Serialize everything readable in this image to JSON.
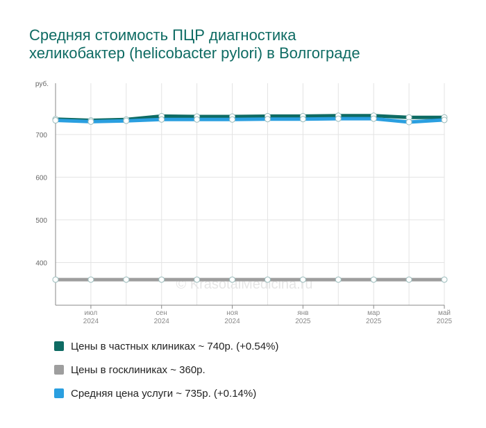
{
  "title": {
    "line1": "Средняя стоимость ПЦР диагностика",
    "line2": "хеликобактер (helicobacter pylori) в Волгограде"
  },
  "watermark": "© KrasotaiMedicina.ru",
  "colors": {
    "private": "#0e6b63",
    "public": "#9e9e9e",
    "average": "#2a9fe0",
    "title": "#0e6b63"
  },
  "legend": [
    {
      "label": "Цены в частных клиниках ~ 740р. (+0.54%)",
      "color": "#0e6b63"
    },
    {
      "label": "Цены в госклиниках ~ 360р.",
      "color": "#9e9e9e"
    },
    {
      "label": "Средняя цена услуги ~ 735р. (+0.14%)",
      "color": "#2a9fe0"
    }
  ],
  "chart_data": {
    "type": "line",
    "y_unit": "руб.",
    "ylim": [
      300,
      820
    ],
    "yticks": [
      400,
      500,
      600,
      700
    ],
    "x_labels": [
      {
        "month": "июл",
        "year": "2024",
        "index": 1
      },
      {
        "month": "сен",
        "year": "2024",
        "index": 3
      },
      {
        "month": "ноя",
        "year": "2024",
        "index": 5
      },
      {
        "month": "янв",
        "year": "2025",
        "index": 7
      },
      {
        "month": "мар",
        "year": "2025",
        "index": 9
      },
      {
        "month": "май",
        "year": "2025",
        "index": 11
      }
    ],
    "grid": true,
    "series": [
      {
        "key": "private",
        "values": [
          736,
          733,
          735,
          743,
          742,
          742,
          743,
          743,
          744,
          744,
          740,
          740
        ]
      },
      {
        "key": "public",
        "values": [
          360,
          360,
          360,
          360,
          360,
          360,
          360,
          360,
          360,
          360,
          360,
          360
        ]
      },
      {
        "key": "average",
        "values": [
          733,
          730,
          732,
          735,
          735,
          735,
          736,
          736,
          737,
          737,
          729,
          734
        ]
      }
    ]
  }
}
